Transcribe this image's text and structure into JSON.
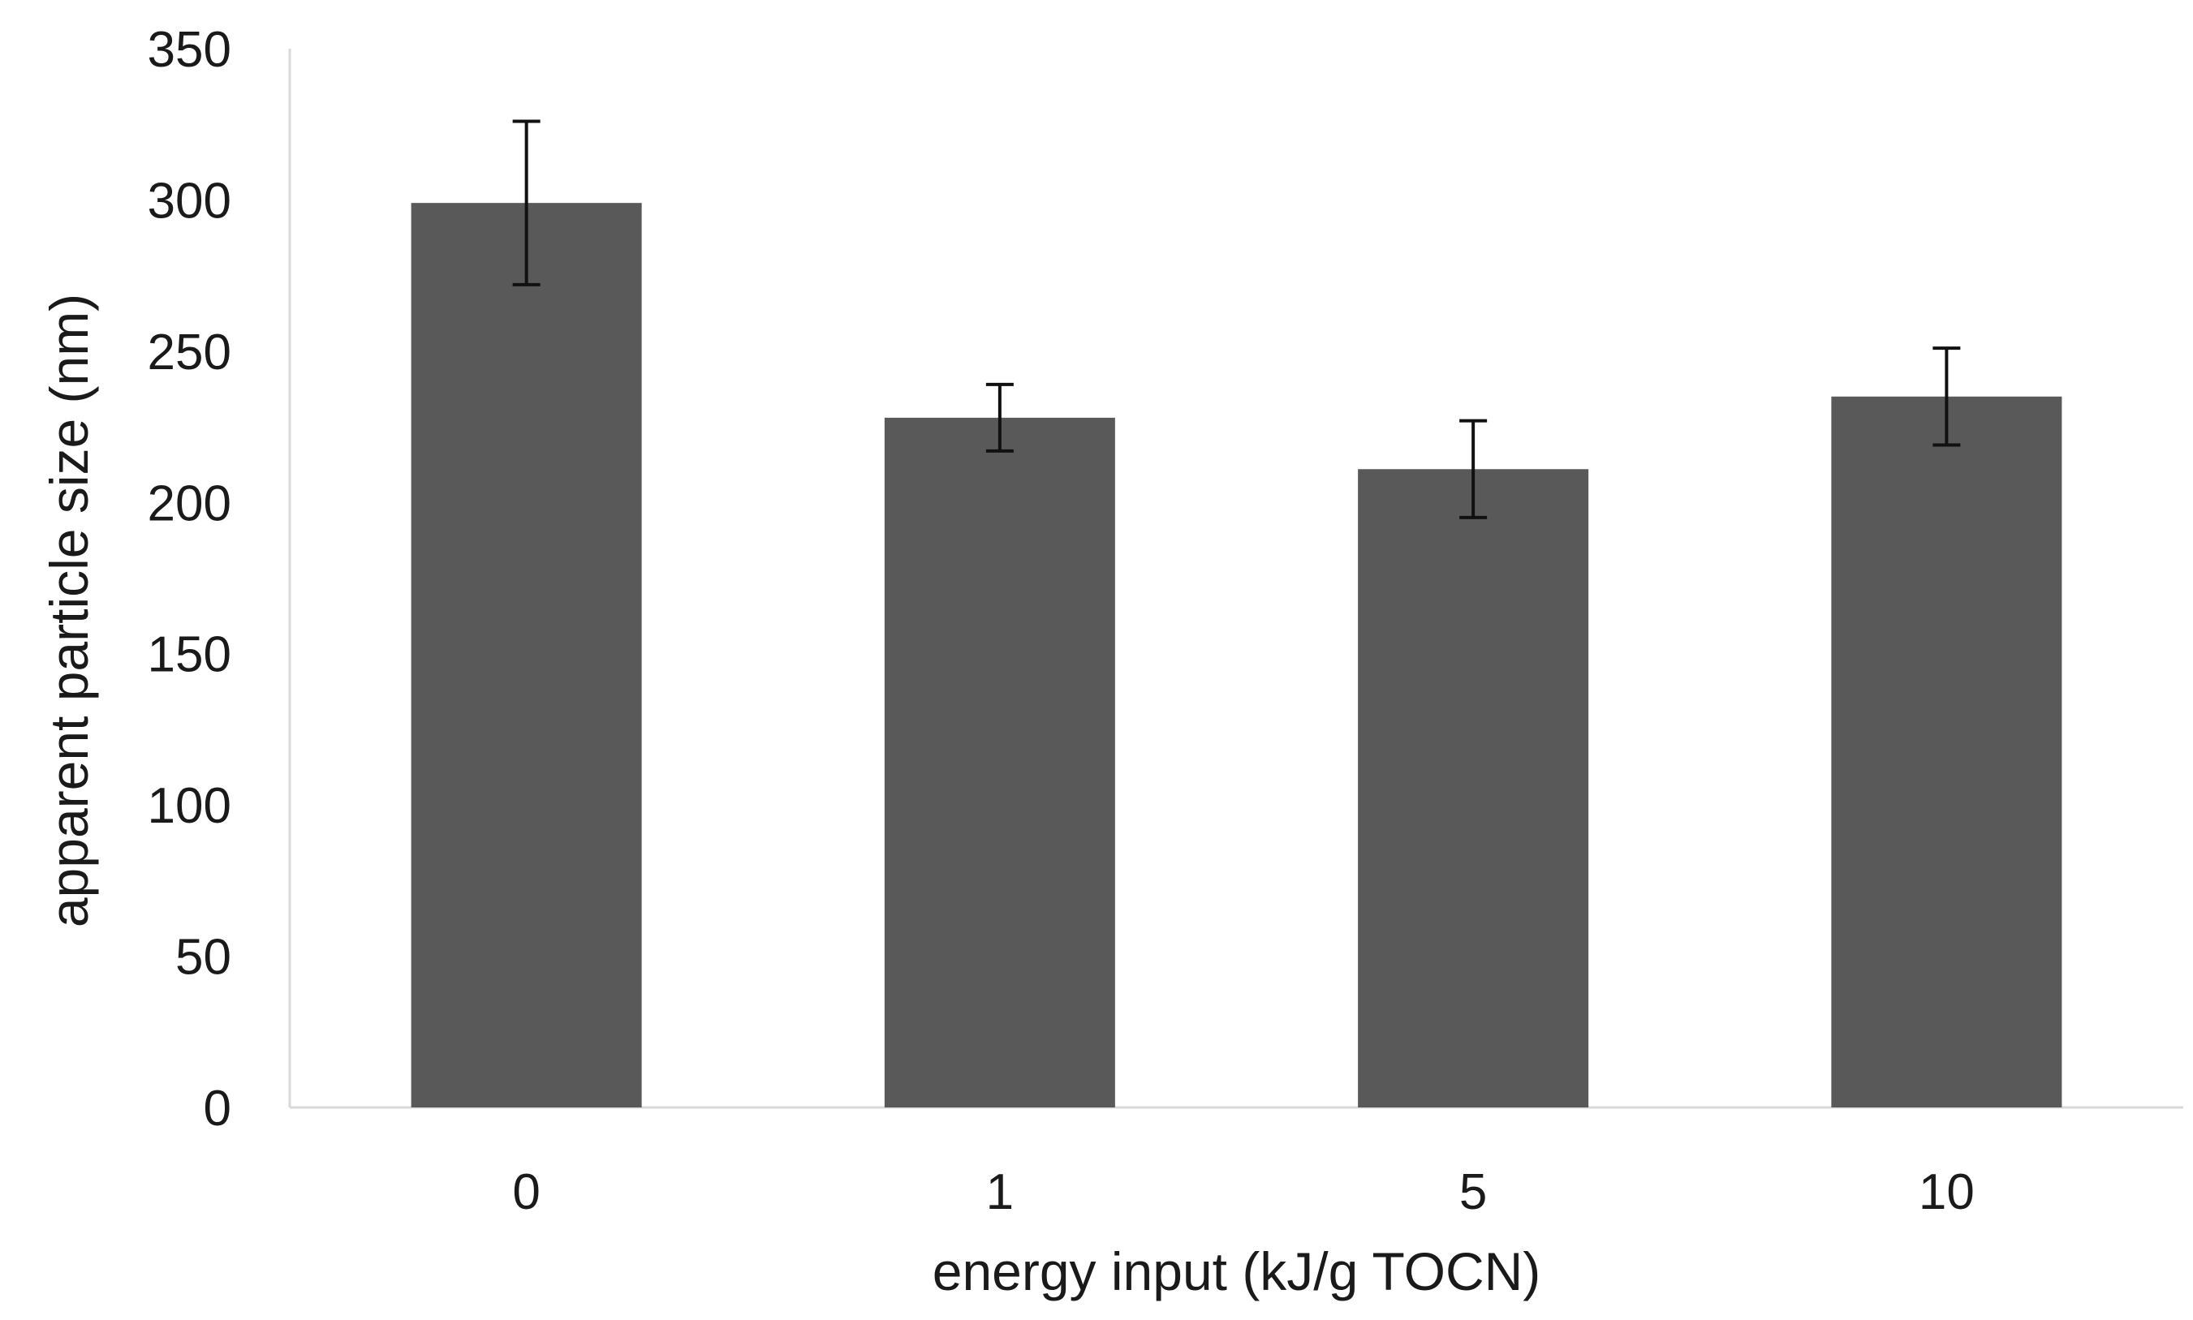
{
  "chart_data": {
    "type": "bar",
    "title": "",
    "xlabel": "energy input (kJ/g TOCN)",
    "ylabel": "apparent particle size (nm)",
    "categories": [
      "0",
      "1",
      "5",
      "10"
    ],
    "values": [
      299,
      228,
      211,
      235
    ],
    "errors": [
      27,
      11,
      16,
      16
    ],
    "ylim": [
      0,
      350
    ],
    "yticks": [
      0,
      50,
      100,
      150,
      200,
      250,
      300,
      350
    ],
    "ytick_labels": [
      "0",
      "50",
      "100",
      "150",
      "200",
      "250",
      "300",
      "350"
    ],
    "grid": false,
    "legend": "none",
    "bar_color": "#595959",
    "error_bar_color": "#111111"
  }
}
